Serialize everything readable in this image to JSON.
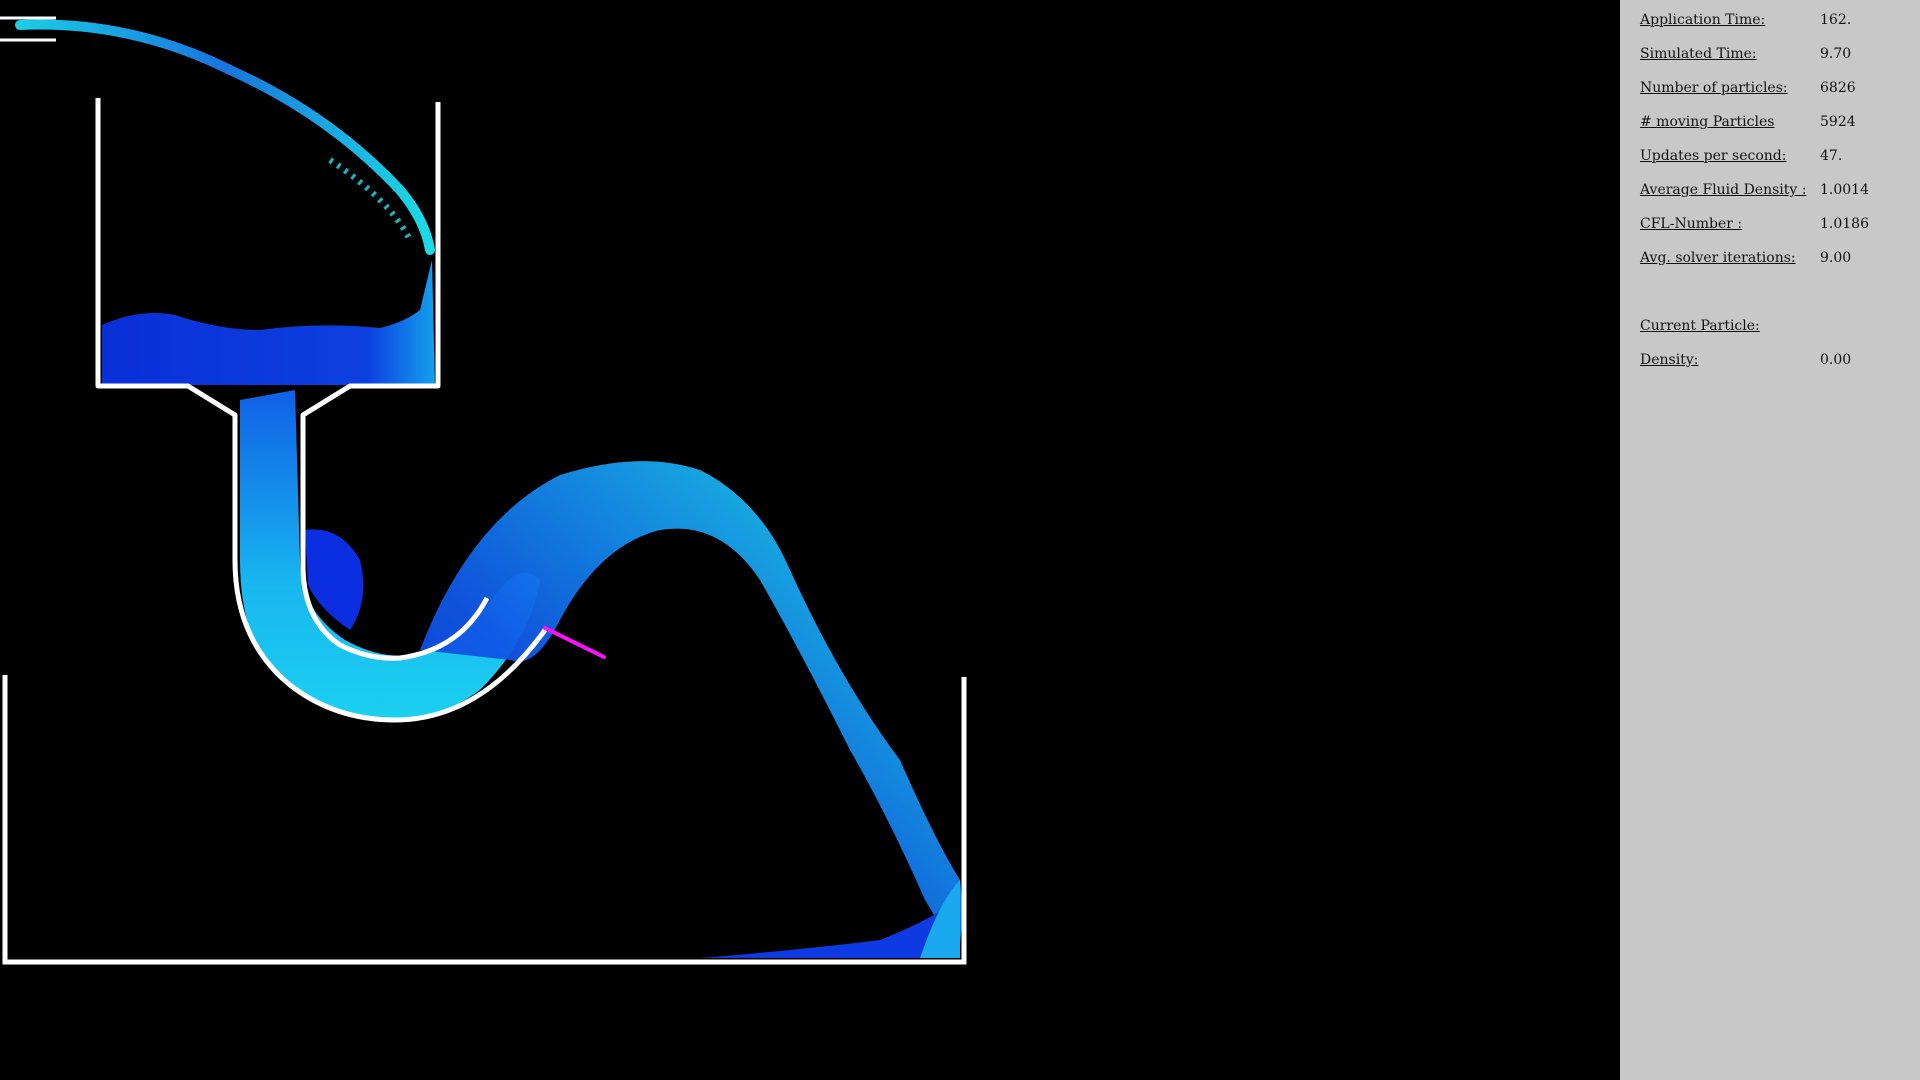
{
  "stats": {
    "application_time": {
      "label": "Application Time:",
      "value": "162."
    },
    "simulated_time": {
      "label": "Simulated Time:",
      "value": "9.70"
    },
    "num_particles": {
      "label": "Number of particles:",
      "value": "6826"
    },
    "moving_particles": {
      "label": "# moving Particles",
      "value": "5924"
    },
    "updates_per_second": {
      "label": "Updates per second:",
      "value": "47."
    },
    "avg_fluid_density": {
      "label": "Average Fluid Density :",
      "value": "1.0014"
    },
    "cfl_number": {
      "label": "CFL-Number :",
      "value": "1.0186"
    },
    "avg_solver_iterations": {
      "label": "Avg. solver iterations:",
      "value": "9.00"
    }
  },
  "current_particle": {
    "heading": "Current Particle:",
    "density": {
      "label": "Density:",
      "value": "0.00"
    }
  },
  "colors": {
    "background": "#000000",
    "panel": "#c8c8c8",
    "boundary": "#ffffff",
    "fluid_slow": "#0a2ee0",
    "fluid_fast": "#1ee6f0",
    "marker": "#ff10ff"
  }
}
